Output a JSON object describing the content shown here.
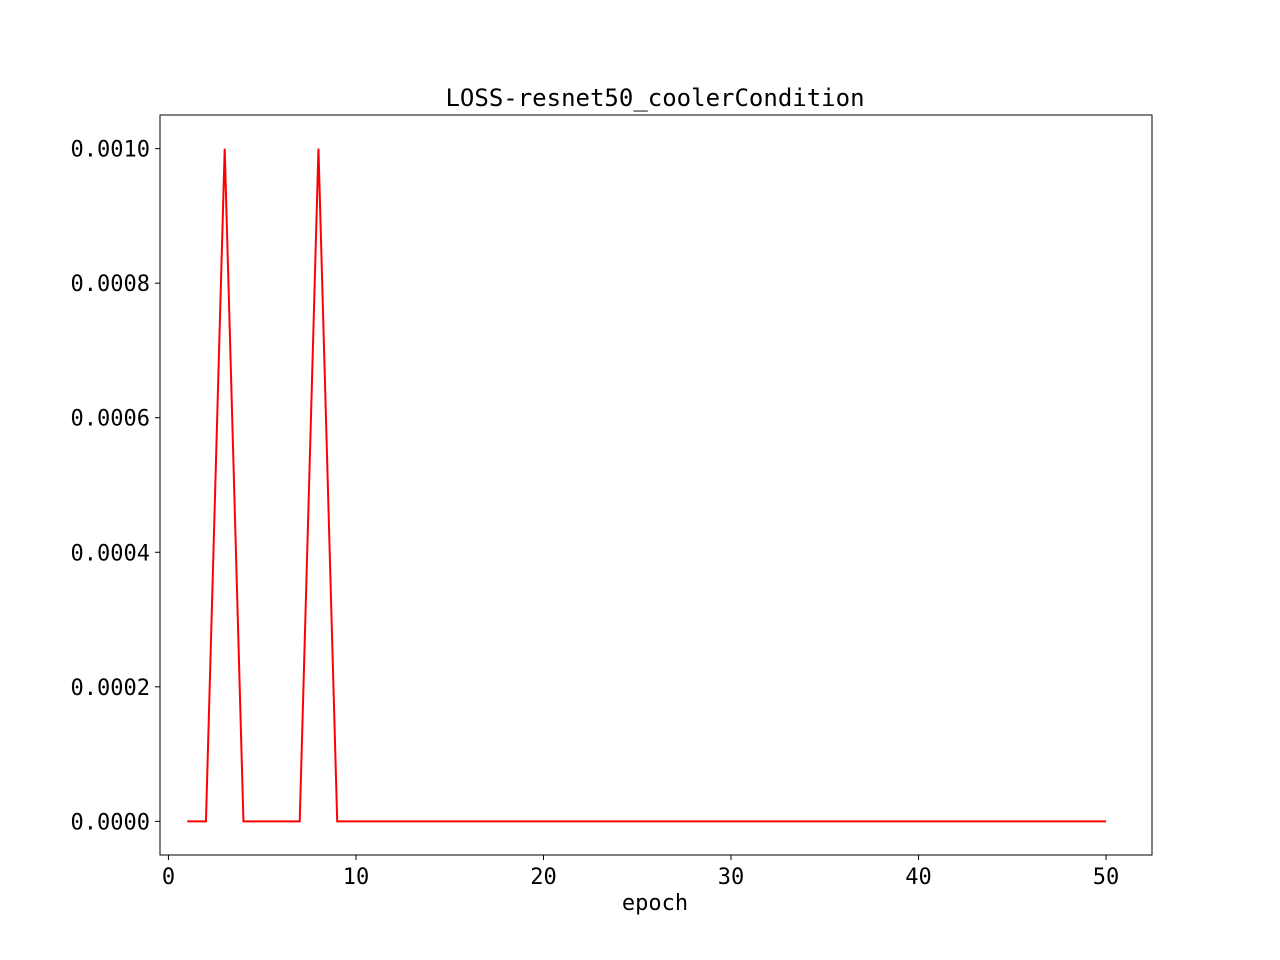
{
  "chart_data": {
    "type": "line",
    "title": "LOSS-resnet50_coolerCondition",
    "xlabel": "epoch",
    "ylabel": "",
    "xlim": [
      -0.45,
      52.45
    ],
    "ylim": [
      -5e-05,
      0.00105
    ],
    "x_ticks": [
      0,
      10,
      20,
      30,
      40,
      50
    ],
    "x_tick_labels": [
      "0",
      "10",
      "20",
      "30",
      "40",
      "50"
    ],
    "y_ticks": [
      0,
      0.0002,
      0.0004,
      0.0006,
      0.0008,
      0.001
    ],
    "y_tick_labels": [
      "0.0000",
      "0.0002",
      "0.0004",
      "0.0006",
      "0.0008",
      "0.0010"
    ],
    "grid": false,
    "legend": "none",
    "series": [
      {
        "color": "#ff0000",
        "x": [
          1,
          2,
          3,
          4,
          5,
          6,
          7,
          8,
          9,
          10,
          11,
          12,
          13,
          14,
          15,
          16,
          17,
          18,
          19,
          20,
          21,
          22,
          23,
          24,
          25,
          26,
          27,
          28,
          29,
          30,
          31,
          32,
          33,
          34,
          35,
          36,
          37,
          38,
          39,
          40,
          41,
          42,
          43,
          44,
          45,
          46,
          47,
          48,
          49,
          50
        ],
        "values": [
          0,
          0,
          0.001,
          0,
          0,
          0,
          0,
          0.001,
          0,
          0,
          0,
          0,
          0,
          0,
          0,
          0,
          0,
          0,
          0,
          0,
          0,
          0,
          0,
          0,
          0,
          0,
          0,
          0,
          0,
          0,
          0,
          0,
          0,
          0,
          0,
          0,
          0,
          0,
          0,
          0,
          0,
          0,
          0,
          0,
          0,
          0,
          0,
          0,
          0,
          0
        ]
      }
    ]
  }
}
